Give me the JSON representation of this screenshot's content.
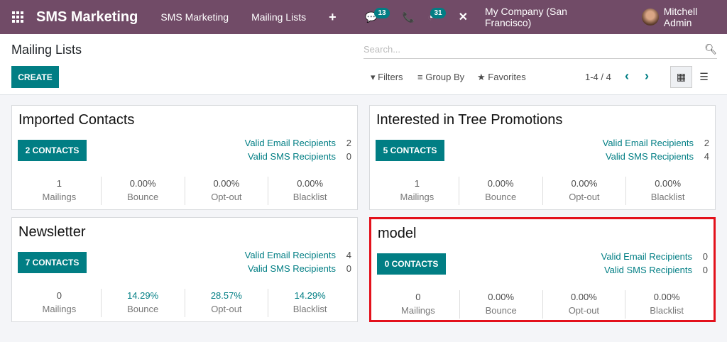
{
  "nav": {
    "brand": "SMS Marketing",
    "menu": [
      "SMS Marketing",
      "Mailing Lists"
    ],
    "messages_count": "13",
    "activities_count": "31",
    "company": "My Company (San Francisco)",
    "user": "Mitchell Admin"
  },
  "control": {
    "title": "Mailing Lists",
    "create": "CREATE",
    "search_placeholder": "Search...",
    "filters": "Filters",
    "group_by": "Group By",
    "favorites": "Favorites",
    "pager": "1-4 / 4"
  },
  "labels": {
    "email": "Valid Email Recipients",
    "sms": "Valid SMS Recipients",
    "mailings": "Mailings",
    "bounce": "Bounce",
    "optout": "Opt-out",
    "blacklist": "Blacklist"
  },
  "cards": [
    {
      "name": "Imported Contacts",
      "contacts": "2 CONTACTS",
      "email": "2",
      "sms": "0",
      "mailings": "1",
      "bounce": "0.00%",
      "optout": "0.00%",
      "blacklist": "0.00%"
    },
    {
      "name": "Interested in Tree Promotions",
      "contacts": "5 CONTACTS",
      "email": "2",
      "sms": "4",
      "mailings": "1",
      "bounce": "0.00%",
      "optout": "0.00%",
      "blacklist": "0.00%"
    },
    {
      "name": "Newsletter",
      "contacts": "7 CONTACTS",
      "email": "4",
      "sms": "0",
      "mailings": "0",
      "bounce": "14.29%",
      "optout": "28.57%",
      "blacklist": "14.29%"
    },
    {
      "name": "model",
      "contacts": "0 CONTACTS",
      "email": "0",
      "sms": "0",
      "mailings": "0",
      "bounce": "0.00%",
      "optout": "0.00%",
      "blacklist": "0.00%"
    }
  ],
  "colors": {
    "nav": "#714b67",
    "accent": "#017e84",
    "highlight": "#e3111c"
  }
}
